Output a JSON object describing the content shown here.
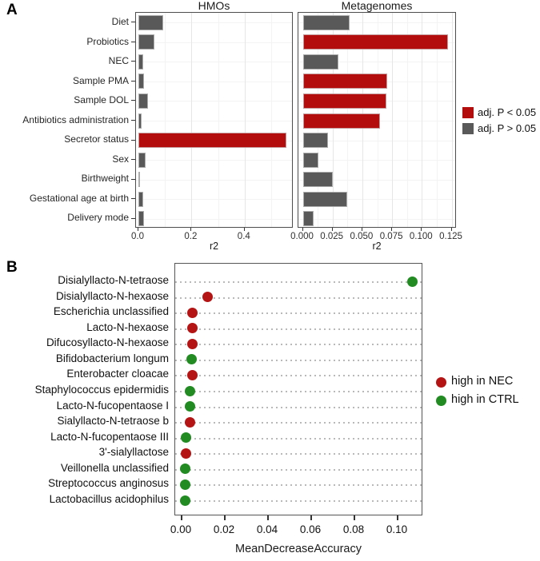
{
  "figure": {
    "panel_a_label": "A",
    "panel_b_label": "B"
  },
  "colors": {
    "significant": "#b30d0d",
    "not_significant": "#595959",
    "nec": "#b41414",
    "ctrl": "#228b22",
    "panel_border": "#4d4d4d",
    "grid_major": "#e6e6e6",
    "grid_minor": "#f3f3f3",
    "dotted_grid": "#b9b9b9"
  },
  "panel_a_legend": [
    {
      "key": "significant",
      "label": "adj. P < 0.05",
      "color": "#b30d0d"
    },
    {
      "key": "not-significant",
      "label": "adj. P > 0.05",
      "color": "#595959"
    }
  ],
  "panel_b_legend": [
    {
      "key": "nec",
      "label": "high in NEC",
      "color": "#b41414"
    },
    {
      "key": "ctrl",
      "label": "high in CTRL",
      "color": "#228b22"
    }
  ],
  "chart_data": [
    {
      "type": "bar",
      "orientation": "horizontal",
      "title": "HMOs",
      "xlabel": "r2",
      "categories": [
        "Diet",
        "Probiotics",
        "NEC",
        "Sample PMA",
        "Sample DOL",
        "Antibiotics administration",
        "Secretor status",
        "Sex",
        "Birthweight",
        "Gestational age at birth",
        "Delivery mode"
      ],
      "values": [
        0.092,
        0.061,
        0.019,
        0.022,
        0.037,
        0.012,
        0.556,
        0.026,
        0.003,
        0.019,
        0.022
      ],
      "significant": [
        false,
        false,
        false,
        false,
        false,
        false,
        true,
        false,
        false,
        false,
        false
      ],
      "xlim": [
        0,
        0.59
      ],
      "xticks": [
        0.0,
        0.2,
        0.4
      ],
      "xtick_labels": [
        "0.0",
        "0.2",
        "0.4"
      ],
      "minor_gridlines": [
        0.1,
        0.3,
        0.5
      ],
      "grid": "on",
      "legend_position": "right"
    },
    {
      "type": "bar",
      "orientation": "horizontal",
      "title": "Metagenomes",
      "xlabel": "r2",
      "categories": [
        "Diet",
        "Probiotics",
        "NEC",
        "Sample PMA",
        "Sample DOL",
        "Antibiotics administration",
        "Secretor status",
        "Sex",
        "Birthweight",
        "Gestational age at birth",
        "Delivery mode"
      ],
      "values": [
        0.039,
        0.122,
        0.03,
        0.071,
        0.07,
        0.065,
        0.021,
        0.013,
        0.025,
        0.037,
        0.009
      ],
      "significant": [
        false,
        true,
        false,
        true,
        true,
        true,
        false,
        false,
        false,
        false,
        false
      ],
      "xlim": [
        0,
        0.129
      ],
      "xticks": [
        0.0,
        0.025,
        0.05,
        0.075,
        0.1,
        0.125
      ],
      "xtick_labels": [
        "0.000",
        "0.025",
        "0.050",
        "0.075",
        "0.100",
        "0.125"
      ],
      "minor_gridlines": [
        0.0125,
        0.0375,
        0.0625,
        0.0875,
        0.1125
      ],
      "grid": "on",
      "legend_position": "right"
    },
    {
      "type": "scatter",
      "subtype": "dotplot",
      "title": "",
      "xlabel": "MeanDecreaseAccuracy",
      "categories": [
        "Disialyllacto-N-tetraose",
        "Disialyllacto-N-hexaose",
        "Escherichia unclassified",
        "Lacto-N-hexaose",
        "Difucosyllacto-N-hexaose",
        "Bifidobacterium longum",
        "Enterobacter cloacae",
        "Staphylococcus epidermidis",
        "Lacto-N-fucopentaose I",
        "Sialyllacto-N-tetraose b",
        "Lacto-N-fucopentaose III",
        "3'-sialyllactose",
        "Veillonella unclassified",
        "Streptococcus anginosus",
        "Lactobacillus acidophilus"
      ],
      "values": [
        0.107,
        0.012,
        0.005,
        0.005,
        0.005,
        0.0045,
        0.005,
        0.004,
        0.004,
        0.004,
        0.002,
        0.002,
        0.0015,
        0.0015,
        0.0015
      ],
      "group": [
        "CTRL",
        "NEC",
        "NEC",
        "NEC",
        "NEC",
        "CTRL",
        "NEC",
        "CTRL",
        "CTRL",
        "NEC",
        "CTRL",
        "NEC",
        "CTRL",
        "CTRL",
        "CTRL"
      ],
      "xlim": [
        0,
        0.112
      ],
      "xticks": [
        0.0,
        0.02,
        0.04,
        0.06,
        0.08,
        0.1
      ],
      "xtick_labels": [
        "0.00",
        "0.02",
        "0.04",
        "0.06",
        "0.08",
        "0.10"
      ],
      "grid": "horizontal-dotted",
      "legend_position": "right"
    }
  ]
}
